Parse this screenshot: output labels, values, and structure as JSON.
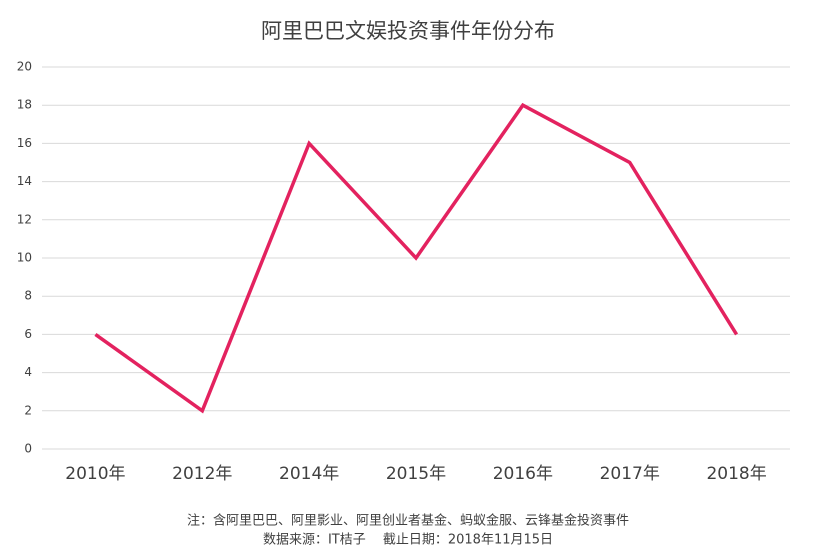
{
  "chart_data": {
    "type": "line",
    "title": "阿里巴巴文娱投资事件年份分布",
    "categories": [
      "2010年",
      "2012年",
      "2014年",
      "2015年",
      "2016年",
      "2017年",
      "2018年"
    ],
    "values": [
      6,
      2,
      16,
      10,
      18,
      15,
      6
    ],
    "color": "#e3225f",
    "ylim": [
      0,
      20
    ],
    "yticks": [
      0,
      2,
      4,
      6,
      8,
      10,
      12,
      14,
      16,
      18,
      20
    ],
    "grid": true,
    "notes": [
      "注：含阿里巴巴、阿里影业、阿里创业者基金、蚂蚁金服、云锋基金投资事件",
      "数据来源：IT桔子　 截止日期：2018年11月15日"
    ]
  }
}
